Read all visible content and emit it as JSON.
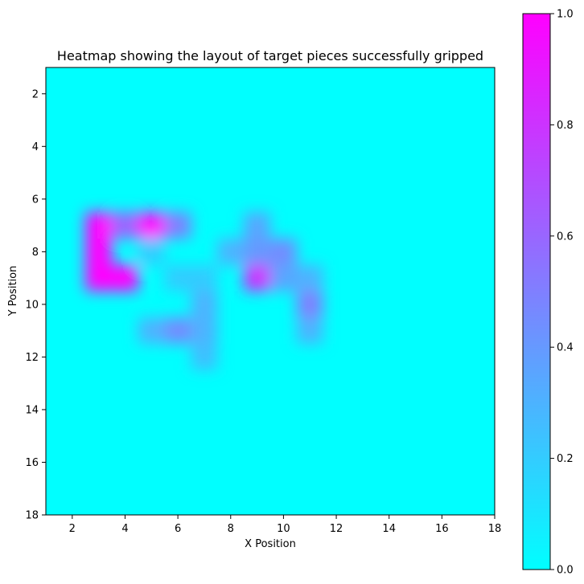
{
  "chart_data": {
    "type": "heatmap",
    "title": "Heatmap showing the layout of target pieces successfully gripped",
    "xlabel": "X Position",
    "ylabel": "Y Position",
    "xlim": [
      1,
      18
    ],
    "ylim": [
      18,
      1
    ],
    "y_inverted": true,
    "x_ticks": [
      2,
      4,
      6,
      8,
      10,
      12,
      14,
      16,
      18
    ],
    "y_ticks": [
      2,
      4,
      6,
      8,
      10,
      12,
      14,
      16,
      18
    ],
    "colormap": "cool",
    "colormap_colors": [
      "#00ffff",
      "#ff00ff"
    ],
    "colorbar": {
      "range": [
        0,
        1
      ],
      "ticks": [
        "0.0",
        "0.2",
        "0.4",
        "0.6",
        "0.8",
        "1.0"
      ]
    },
    "interpolation": "smooth",
    "grid": false,
    "cells": [
      {
        "x": 3,
        "y": 7,
        "value": 1.0
      },
      {
        "x": 4,
        "y": 7,
        "value": 0.6
      },
      {
        "x": 3,
        "y": 8,
        "value": 1.0
      },
      {
        "x": 3,
        "y": 9,
        "value": 1.0
      },
      {
        "x": 4,
        "y": 9,
        "value": 1.0
      },
      {
        "x": 5,
        "y": 7,
        "value": 1.0
      },
      {
        "x": 6,
        "y": 7,
        "value": 0.5
      },
      {
        "x": 5,
        "y": 8,
        "value": 0.2
      },
      {
        "x": 6,
        "y": 9,
        "value": 0.2
      },
      {
        "x": 7,
        "y": 9,
        "value": 0.2
      },
      {
        "x": 5,
        "y": 11,
        "value": 0.3
      },
      {
        "x": 6,
        "y": 11,
        "value": 0.45
      },
      {
        "x": 7,
        "y": 11,
        "value": 0.3
      },
      {
        "x": 7,
        "y": 10,
        "value": 0.3
      },
      {
        "x": 7,
        "y": 12,
        "value": 0.25
      },
      {
        "x": 8,
        "y": 8,
        "value": 0.3
      },
      {
        "x": 9,
        "y": 7,
        "value": 0.35
      },
      {
        "x": 9,
        "y": 8,
        "value": 0.4
      },
      {
        "x": 9,
        "y": 9,
        "value": 0.8
      },
      {
        "x": 10,
        "y": 8,
        "value": 0.45
      },
      {
        "x": 10,
        "y": 9,
        "value": 0.35
      },
      {
        "x": 11,
        "y": 9,
        "value": 0.3
      },
      {
        "x": 11,
        "y": 10,
        "value": 0.5
      },
      {
        "x": 11,
        "y": 11,
        "value": 0.3
      }
    ]
  }
}
